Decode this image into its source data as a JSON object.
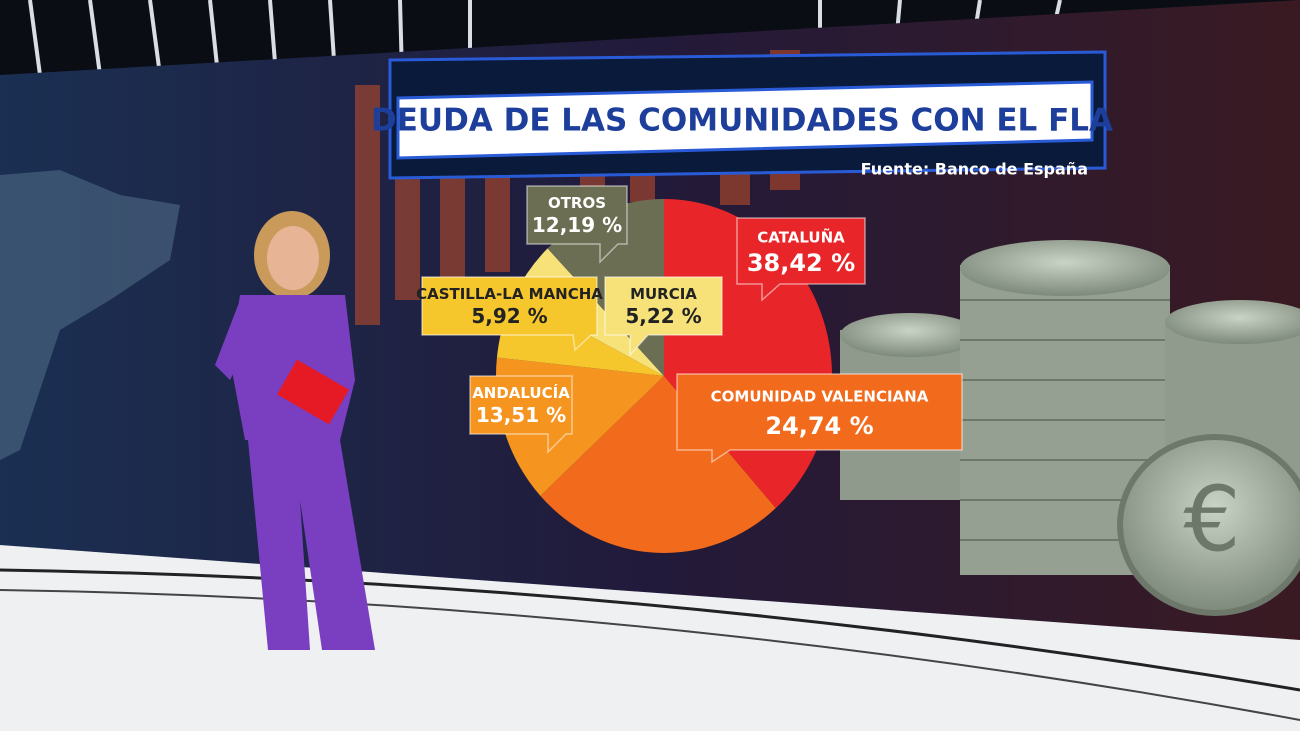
{
  "chart_data": {
    "type": "pie",
    "title": "DEUDA DE LAS COMUNIDADES CON EL FLA",
    "source": "Fuente: Banco de España",
    "categories": [
      "CATALUÑA",
      "COMUNIDAD VALENCIANA",
      "ANDALUCÍA",
      "CASTILLA-LA MANCHA",
      "MURCIA",
      "OTROS"
    ],
    "values": [
      38.42,
      24.74,
      13.51,
      5.92,
      5.22,
      12.19
    ],
    "value_labels": [
      "38,42 %",
      "24,74 %",
      "13,51 %",
      "5,92 %",
      "5,22 %",
      "12,19 %"
    ],
    "colors": [
      "#e8262a",
      "#f26a1b",
      "#f5951f",
      "#f6c72c",
      "#f7e27a",
      "#6b6e52"
    ]
  }
}
